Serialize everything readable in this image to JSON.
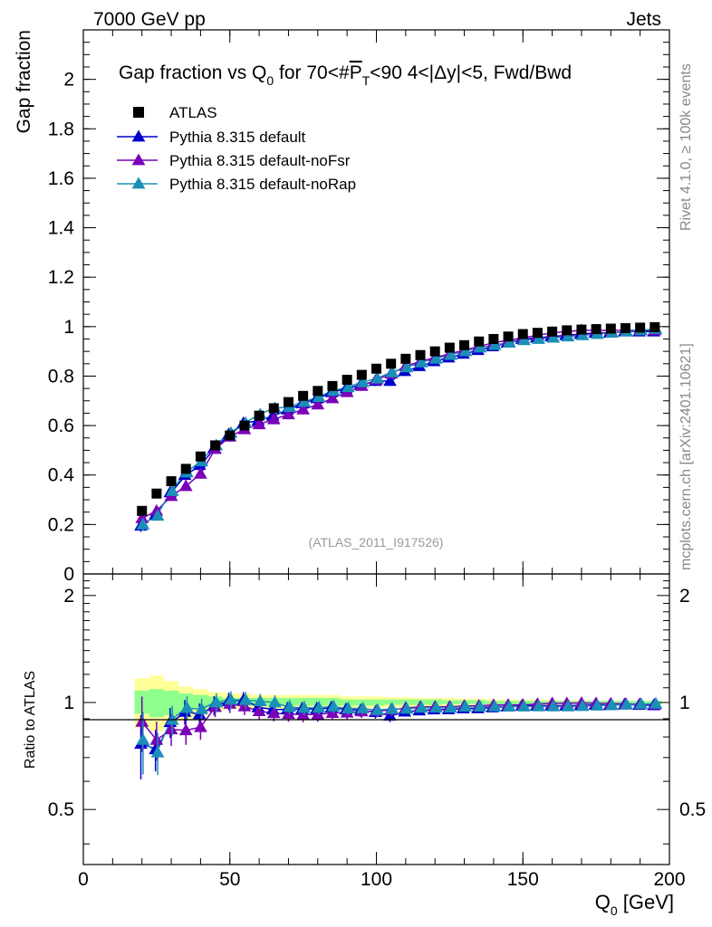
{
  "header": {
    "left": "7000 GeV pp",
    "right": "Jets"
  },
  "side_labels": {
    "right_top": "Rivet 4.1.0, ≥ 100k events",
    "right_bottom": "mcplots.cern.ch [arXiv:2401.10621]"
  },
  "chart_data": {
    "type": "scatter",
    "title": "Gap fraction vs Q0 for 70<#PT<90  4<|Δy|<5, Fwd/Bwd",
    "title_parts": {
      "a": "Gap fraction vs Q",
      "sub": "0",
      "b": " for 70<#",
      "p": "P",
      "psub": "T",
      "c": "<90  4<|Δy|<5, Fwd/Bwd"
    },
    "watermark": "(ATLAS_2011_I917526)",
    "ylabel": "Gap fraction",
    "ratio_ylabel": "Ratio to ATLAS",
    "xlabel": "Q0 [GeV]",
    "xlabel_parts": {
      "main": "Q",
      "sub": "0",
      "rest": " [GeV]"
    },
    "xlim": [
      0,
      200
    ],
    "ylim": [
      0,
      2.2
    ],
    "ratio_ylim": [
      0.35,
      2.3
    ],
    "xticks": [
      0,
      50,
      100,
      150,
      200
    ],
    "yticks": [
      0.2,
      0.4,
      0.6,
      0.8,
      1,
      1.2,
      1.4,
      1.6,
      1.8,
      2
    ],
    "ratio_yticks": [
      0.5,
      1,
      2
    ],
    "x": [
      20,
      25,
      30,
      35,
      40,
      45,
      50,
      55,
      60,
      65,
      70,
      75,
      80,
      85,
      90,
      95,
      100,
      105,
      110,
      115,
      120,
      125,
      130,
      135,
      140,
      145,
      150,
      155,
      160,
      165,
      170,
      175,
      180,
      185,
      190,
      195
    ],
    "legend": [
      "ATLAS",
      "Pythia 8.315 default",
      "Pythia 8.315 default-noFsr",
      "Pythia 8.315 default-noRap"
    ],
    "series": [
      {
        "name": "ATLAS",
        "color": "#000000",
        "marker": "square",
        "values": [
          0.255,
          0.325,
          0.375,
          0.425,
          0.475,
          0.52,
          0.56,
          0.6,
          0.64,
          0.67,
          0.695,
          0.72,
          0.74,
          0.76,
          0.785,
          0.805,
          0.83,
          0.85,
          0.87,
          0.885,
          0.9,
          0.915,
          0.925,
          0.94,
          0.95,
          0.96,
          0.97,
          0.975,
          0.98,
          0.985,
          0.988,
          0.99,
          0.992,
          0.994,
          0.996,
          0.998
        ],
        "ratio_band": [
          0.93,
          0.91,
          0.92,
          0.94,
          0.96,
          0.97,
          0.98,
          0.98,
          0.98,
          0.98,
          0.98,
          0.98,
          0.98,
          0.98,
          0.98,
          0.98,
          0.98,
          0.985,
          0.985,
          0.985,
          0.985,
          0.99,
          0.99,
          0.99,
          0.99,
          0.99,
          0.99,
          0.99,
          0.99,
          0.99,
          0.99,
          0.99,
          0.99,
          0.99,
          0.99,
          0.99
        ],
        "ratio_band_hi": [
          1.08,
          1.09,
          1.08,
          1.06,
          1.05,
          1.04,
          1.03,
          1.03,
          1.03,
          1.03,
          1.03,
          1.03,
          1.03,
          1.03,
          1.02,
          1.02,
          1.02,
          1.02,
          1.02,
          1.02,
          1.02,
          1.015,
          1.015,
          1.015,
          1.01,
          1.01,
          1.01,
          1.01,
          1.01,
          1.01,
          1.01,
          1.01,
          1.01,
          1.01,
          1.01,
          1.01
        ],
        "ratio_band2_lo": [
          0.85,
          0.83,
          0.86,
          0.89,
          0.92,
          0.94,
          0.96,
          0.96,
          0.96,
          0.96,
          0.96,
          0.96,
          0.96,
          0.96,
          0.965,
          0.965,
          0.965,
          0.97,
          0.97,
          0.97,
          0.975,
          0.975,
          0.98,
          0.98,
          0.98,
          0.985,
          0.985,
          0.985,
          0.985,
          0.99,
          0.99,
          0.99,
          0.99,
          0.99,
          0.99,
          0.99
        ],
        "ratio_band2_hi": [
          1.17,
          1.19,
          1.15,
          1.11,
          1.09,
          1.07,
          1.06,
          1.06,
          1.05,
          1.05,
          1.05,
          1.05,
          1.05,
          1.05,
          1.04,
          1.04,
          1.04,
          1.035,
          1.035,
          1.03,
          1.03,
          1.03,
          1.025,
          1.025,
          1.02,
          1.02,
          1.02,
          1.02,
          1.015,
          1.015,
          1.015,
          1.01,
          1.01,
          1.01,
          1.01,
          1.01
        ]
      },
      {
        "name": "Pythia 8.315 default",
        "color": "#0000cc",
        "marker": "triangle",
        "values": [
          0.195,
          0.24,
          0.33,
          0.4,
          0.44,
          0.51,
          0.565,
          0.61,
          0.62,
          0.64,
          0.665,
          0.69,
          0.71,
          0.735,
          0.75,
          0.765,
          0.78,
          0.78,
          0.82,
          0.84,
          0.86,
          0.875,
          0.89,
          0.905,
          0.92,
          0.935,
          0.95,
          0.955,
          0.96,
          0.965,
          0.97,
          0.975,
          0.975,
          0.98,
          0.98,
          0.98
        ],
        "errors": [
          0.025,
          0.02,
          0.02,
          0.02,
          0.02,
          0.02,
          0.02,
          0.02,
          0.02,
          0.02,
          0.02,
          0.02,
          0.02,
          0.02,
          0.02,
          0.02,
          0.02,
          0.02,
          0.015,
          0.015,
          0.015,
          0.015,
          0.01,
          0.01,
          0.01,
          0.01,
          0.01,
          0.01,
          0.01,
          0.01,
          0.01,
          0.01,
          0.01,
          0.01,
          0.01,
          0.01
        ]
      },
      {
        "name": "Pythia 8.315 default-noFsr",
        "color": "#7a00b8",
        "marker": "triangle",
        "values": [
          0.225,
          0.255,
          0.315,
          0.355,
          0.405,
          0.505,
          0.555,
          0.585,
          0.605,
          0.625,
          0.645,
          0.665,
          0.685,
          0.71,
          0.735,
          0.76,
          0.785,
          0.81,
          0.84,
          0.86,
          0.875,
          0.89,
          0.905,
          0.92,
          0.935,
          0.945,
          0.955,
          0.965,
          0.975,
          0.98,
          0.985,
          0.985,
          0.985,
          0.985,
          0.985,
          0.985
        ],
        "errors": [
          0.025,
          0.02,
          0.02,
          0.02,
          0.02,
          0.02,
          0.02,
          0.02,
          0.02,
          0.02,
          0.02,
          0.02,
          0.02,
          0.02,
          0.02,
          0.02,
          0.02,
          0.02,
          0.015,
          0.015,
          0.015,
          0.015,
          0.01,
          0.01,
          0.01,
          0.01,
          0.01,
          0.01,
          0.01,
          0.01,
          0.01,
          0.01,
          0.01,
          0.01,
          0.01,
          0.01
        ]
      },
      {
        "name": "Pythia 8.315 default-noRap",
        "color": "#1a8fb8",
        "marker": "triangle",
        "values": [
          0.2,
          0.235,
          0.335,
          0.41,
          0.455,
          0.52,
          0.57,
          0.61,
          0.645,
          0.67,
          0.675,
          0.695,
          0.715,
          0.74,
          0.755,
          0.775,
          0.79,
          0.815,
          0.835,
          0.855,
          0.87,
          0.885,
          0.9,
          0.915,
          0.925,
          0.935,
          0.945,
          0.95,
          0.955,
          0.96,
          0.965,
          0.97,
          0.975,
          0.98,
          0.985,
          0.99
        ],
        "errors": [
          0.025,
          0.02,
          0.02,
          0.02,
          0.02,
          0.02,
          0.02,
          0.02,
          0.02,
          0.02,
          0.02,
          0.02,
          0.02,
          0.02,
          0.02,
          0.02,
          0.02,
          0.02,
          0.015,
          0.015,
          0.015,
          0.015,
          0.01,
          0.01,
          0.01,
          0.01,
          0.01,
          0.01,
          0.01,
          0.01,
          0.01,
          0.01,
          0.01,
          0.01,
          0.01,
          0.01
        ]
      }
    ]
  }
}
